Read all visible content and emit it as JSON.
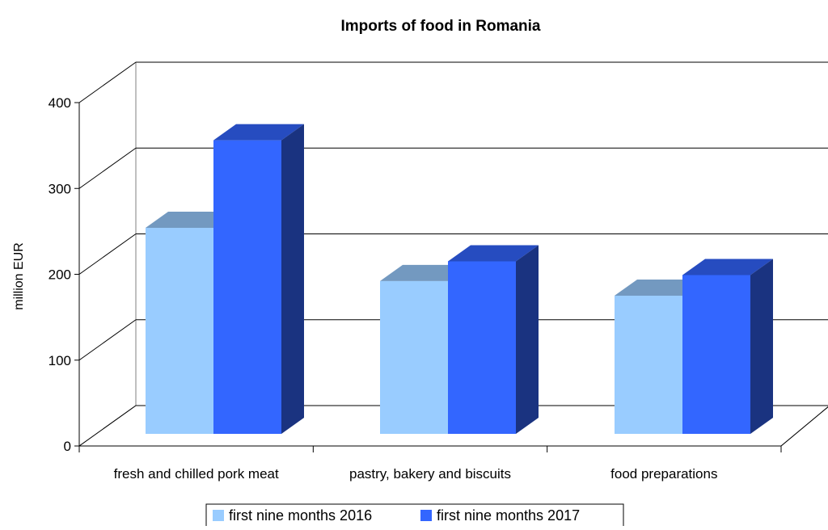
{
  "chart_data": {
    "type": "bar",
    "title": "Imports of food in Romania",
    "ylabel": "million EUR",
    "xlabel": "",
    "ylim": [
      0,
      400
    ],
    "yticks": [
      0,
      100,
      200,
      300,
      400
    ],
    "grid": true,
    "legend_position": "bottom",
    "categories": [
      "fresh and chilled pork meat",
      "pastry, bakery and biscuits",
      "food preparations"
    ],
    "series": [
      {
        "name": "first nine months 2016",
        "values": [
          240,
          178,
          161
        ],
        "colors": {
          "front": "#99ccff",
          "top": "#7399c0",
          "side": "#7399c0"
        }
      },
      {
        "name": "first nine months 2017",
        "values": [
          342,
          201,
          185
        ],
        "colors": {
          "front": "#3366ff",
          "top": "#264cc0",
          "side": "#1a3380"
        }
      }
    ]
  }
}
